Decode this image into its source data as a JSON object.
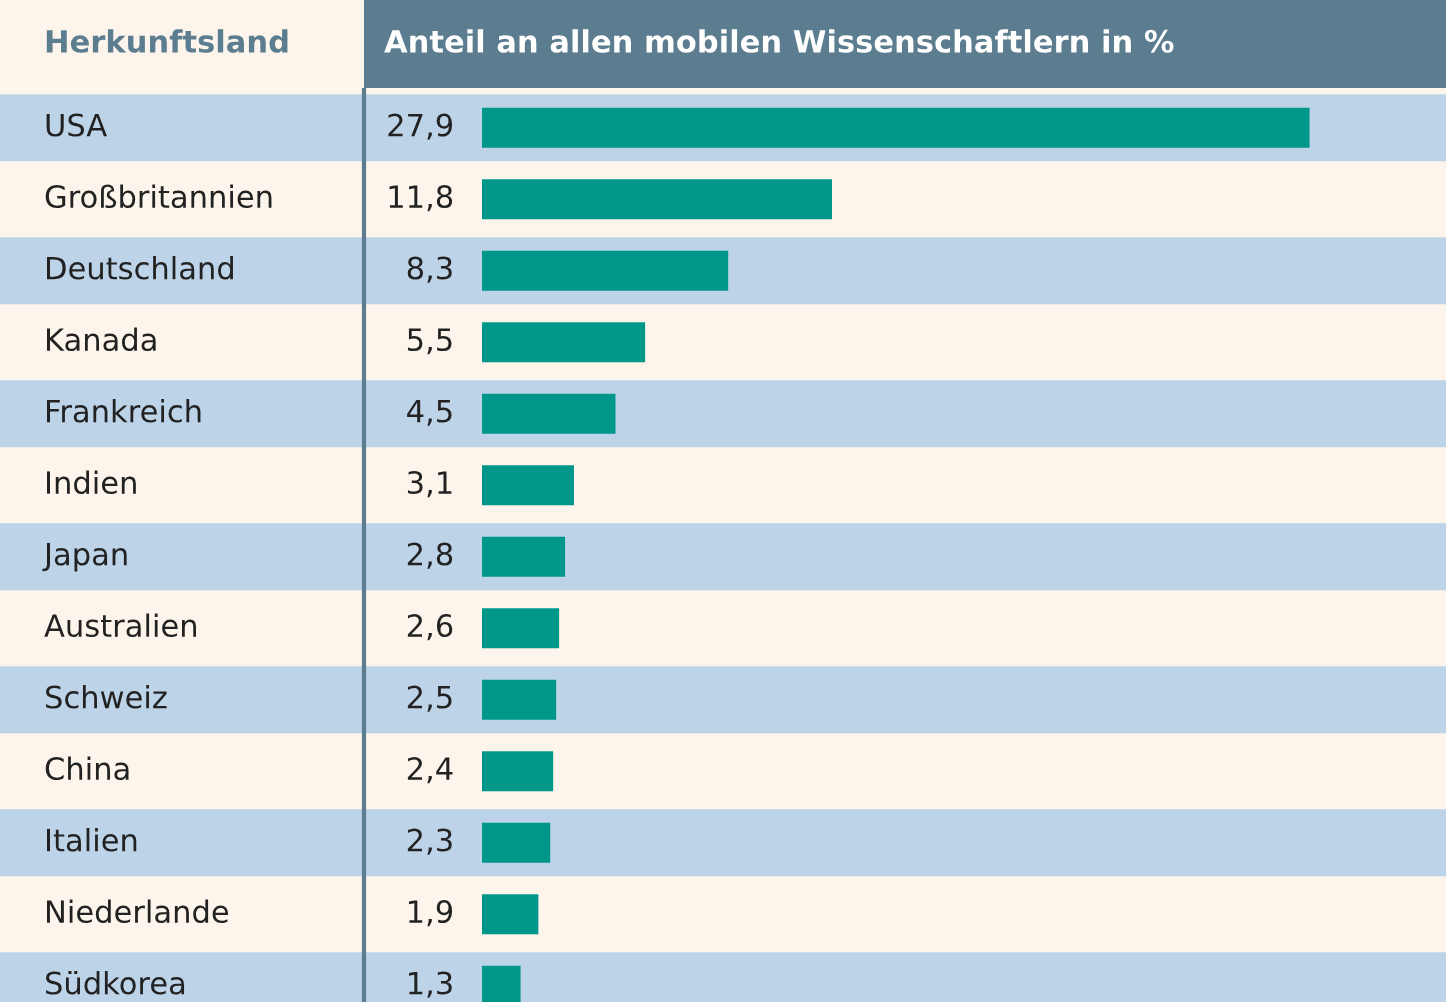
{
  "chart_data": {
    "type": "bar",
    "orientation": "horizontal",
    "title": "Anteil an allen mobilen Wissenschaftlern in %",
    "ylabel": "Herkunftsland",
    "categories": [
      "USA",
      "Großbritannien",
      "Deutschland",
      "Kanada",
      "Frankreich",
      "Indien",
      "Japan",
      "Australien",
      "Schweiz",
      "China",
      "Italien",
      "Niederlande",
      "Südkorea"
    ],
    "values": [
      27.9,
      11.8,
      8.3,
      5.5,
      4.5,
      3.1,
      2.8,
      2.6,
      2.5,
      2.4,
      2.3,
      1.9,
      1.3
    ],
    "value_labels": [
      "27,9",
      "11,8",
      "8,3",
      "5,5",
      "4,5",
      "3,1",
      "2,8",
      "2,6",
      "2,5",
      "2,4",
      "2,3",
      "1,9",
      "1,3"
    ],
    "color": "#00978b",
    "xlim": [
      0,
      32.5
    ],
    "legend": false
  }
}
